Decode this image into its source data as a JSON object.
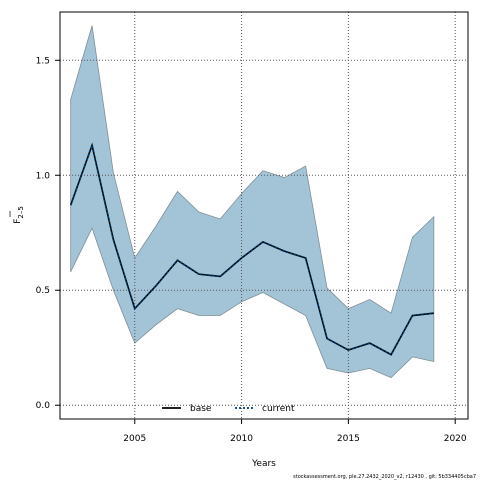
{
  "chart_data": {
    "type": "line",
    "xlabel": "Years",
    "ylabel_main": "F",
    "ylabel_sub": "2–5",
    "xlim": [
      2001.5,
      2020.6
    ],
    "ylim": [
      -0.06,
      1.71
    ],
    "x_ticks": [
      2005,
      2010,
      2015,
      2020
    ],
    "y_ticks": [
      0.0,
      0.5,
      1.0,
      1.5
    ],
    "y_tick_labels": [
      "0.0",
      "0.5",
      "1.0",
      "1.5"
    ],
    "grid": true,
    "legend_placement": "bottom-center",
    "years": [
      2002,
      2003,
      2004,
      2005,
      2006,
      2007,
      2008,
      2009,
      2010,
      2011,
      2012,
      2013,
      2014,
      2015,
      2016,
      2017,
      2018,
      2019
    ],
    "band_upper": [
      1.33,
      1.65,
      1.01,
      0.64,
      0.78,
      0.93,
      0.84,
      0.81,
      0.92,
      1.02,
      0.99,
      1.04,
      0.51,
      0.42,
      0.46,
      0.4,
      0.73,
      0.82
    ],
    "band_lower": [
      0.58,
      0.77,
      0.5,
      0.27,
      0.35,
      0.42,
      0.39,
      0.39,
      0.45,
      0.49,
      0.44,
      0.39,
      0.16,
      0.14,
      0.16,
      0.12,
      0.21,
      0.19
    ],
    "series": [
      {
        "name": "base",
        "style": "solid",
        "color": "#000000",
        "values": [
          0.87,
          1.13,
          0.72,
          0.42,
          0.52,
          0.63,
          0.57,
          0.56,
          0.64,
          0.71,
          0.67,
          0.64,
          0.29,
          0.24,
          0.27,
          0.22,
          0.39,
          0.4
        ]
      },
      {
        "name": "current",
        "style": "dotted",
        "color": "#003b6f",
        "values": [
          0.87,
          1.13,
          0.72,
          0.42,
          0.52,
          0.63,
          0.57,
          0.56,
          0.64,
          0.71,
          0.67,
          0.64,
          0.29,
          0.24,
          0.27,
          0.22,
          0.39,
          0.4
        ]
      }
    ],
    "colors": {
      "band_fill": "#a3c4d6",
      "band_stroke": "#7f8f98",
      "grid": "#555555"
    },
    "footnote": "stockassessment.org, ple.27.2432_2020_v2, r12430 , git: 5b334405cba7"
  }
}
